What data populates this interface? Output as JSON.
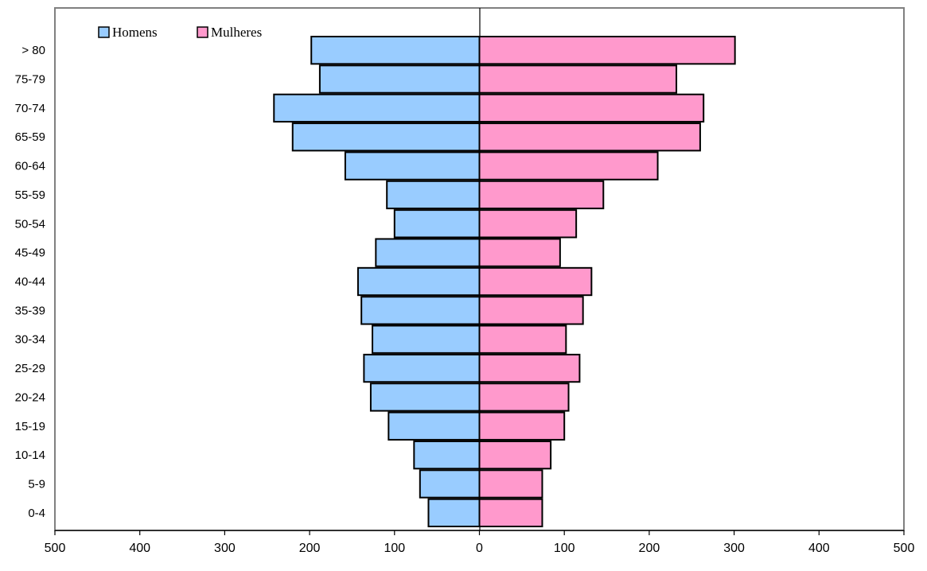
{
  "chart_data": {
    "type": "bar",
    "orientation": "horizontal",
    "subtype": "population-pyramid",
    "categories": [
      "> 80",
      "75-79",
      "70-74",
      "65-59",
      "60-64",
      "55-59",
      "50-54",
      "45-49",
      "40-44",
      "35-39",
      "30-34",
      "25-29",
      "20-24",
      "15-19",
      "10-14",
      "5-9",
      "0-4"
    ],
    "series": [
      {
        "name": "Homens",
        "color": "#99ccff",
        "values": [
          198,
          188,
          242,
          220,
          158,
          109,
          100,
          122,
          143,
          139,
          126,
          136,
          128,
          107,
          77,
          70,
          60
        ]
      },
      {
        "name": "Mulheres",
        "color": "#ff99cc",
        "values": [
          301,
          232,
          264,
          260,
          210,
          146,
          114,
          95,
          132,
          122,
          102,
          118,
          105,
          100,
          84,
          74,
          74
        ]
      }
    ],
    "xticks": [
      "500",
      "400",
      "300",
      "200",
      "100",
      "0",
      "100",
      "200",
      "300",
      "400",
      "500"
    ],
    "xlim": [
      -500,
      500
    ],
    "grid": false,
    "legend": "top-left"
  }
}
